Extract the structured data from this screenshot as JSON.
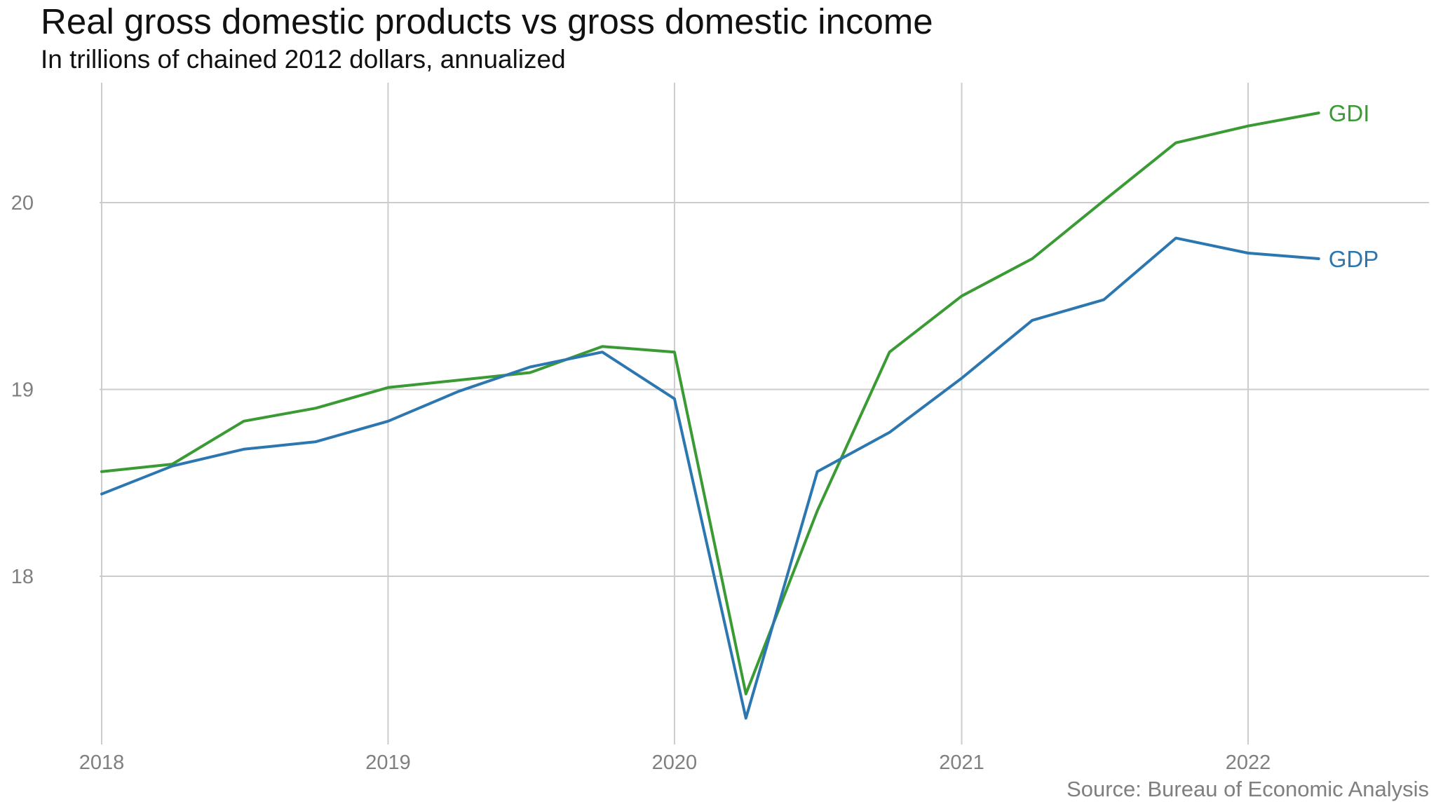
{
  "chart_data": {
    "type": "line",
    "title": "Real gross domestic products vs gross domestic income",
    "subtitle": "In trillions of chained 2012 dollars, annualized",
    "source": "Source: Bureau of Economic Analysis",
    "x_axis": {
      "type": "date",
      "range": [
        "2018-01-01",
        "2022-07-01"
      ],
      "ticks": [
        {
          "date": "2018-01-01",
          "label": "2018"
        },
        {
          "date": "2019-01-01",
          "label": "2019"
        },
        {
          "date": "2020-01-01",
          "label": "2020"
        },
        {
          "date": "2021-01-01",
          "label": "2021"
        },
        {
          "date": "2022-01-01",
          "label": "2022"
        }
      ]
    },
    "y_axis": {
      "range": [
        17.1,
        20.75
      ],
      "ticks": [
        {
          "value": 18,
          "label": "18"
        },
        {
          "value": 19,
          "label": "19"
        },
        {
          "value": 20,
          "label": "20"
        }
      ]
    },
    "grid": true,
    "legend": "direct labels at line ends",
    "x": [
      "2018-01-01",
      "2018-04-01",
      "2018-07-01",
      "2018-10-01",
      "2019-01-01",
      "2019-04-01",
      "2019-07-01",
      "2019-10-01",
      "2020-01-01",
      "2020-04-01",
      "2020-07-01",
      "2020-10-01",
      "2021-01-01",
      "2021-04-01",
      "2021-07-01",
      "2021-10-01",
      "2022-01-01",
      "2022-04-01"
    ],
    "series": [
      {
        "name": "GDI",
        "color": "#3a9a34",
        "values": [
          18.56,
          18.6,
          18.83,
          18.9,
          19.01,
          19.05,
          19.09,
          19.23,
          19.2,
          17.37,
          18.35,
          19.2,
          19.5,
          19.7,
          20.01,
          20.32,
          20.41,
          20.48
        ]
      },
      {
        "name": "GDP",
        "color": "#2c77b0",
        "values": [
          18.44,
          18.59,
          18.68,
          18.72,
          18.83,
          18.99,
          19.12,
          19.2,
          18.95,
          17.24,
          18.56,
          18.77,
          19.06,
          19.37,
          19.48,
          19.81,
          19.73,
          19.7
        ]
      }
    ]
  }
}
